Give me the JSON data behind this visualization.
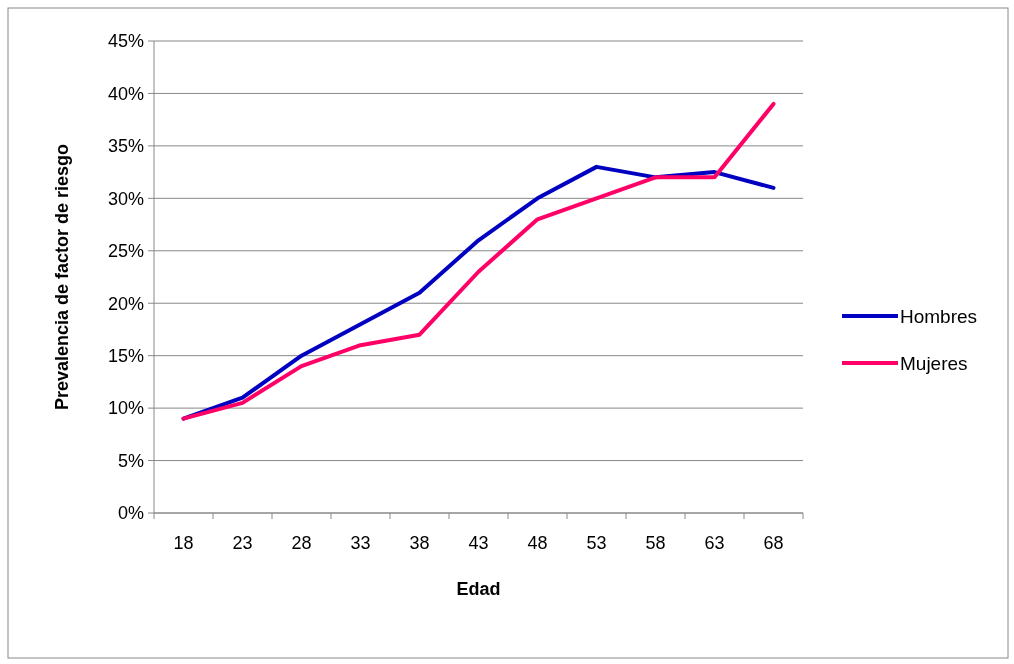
{
  "chart_data": {
    "type": "line",
    "xlabel": "Edad",
    "ylabel": "Prevalencia de factor de riesgo",
    "categories": [
      "18",
      "23",
      "28",
      "33",
      "38",
      "43",
      "48",
      "53",
      "58",
      "63",
      "68"
    ],
    "series": [
      {
        "name": "Hombres",
        "color": "#0000c0",
        "values": [
          9,
          11,
          15,
          18,
          21,
          26,
          30,
          33,
          32,
          32.5,
          31
        ]
      },
      {
        "name": "Mujeres",
        "color": "#ff0066",
        "values": [
          9,
          10.5,
          14,
          16,
          17,
          23,
          28,
          30,
          32,
          32,
          39
        ]
      }
    ],
    "ylim": [
      0,
      45
    ],
    "yticks": [
      {
        "value": 0,
        "label": "0%"
      },
      {
        "value": 5,
        "label": "5%"
      },
      {
        "value": 10,
        "label": "10%"
      },
      {
        "value": 15,
        "label": "15%"
      },
      {
        "value": 20,
        "label": "20%"
      },
      {
        "value": 25,
        "label": "25%"
      },
      {
        "value": 30,
        "label": "30%"
      },
      {
        "value": 35,
        "label": "35%"
      },
      {
        "value": 40,
        "label": "40%"
      },
      {
        "value": 45,
        "label": "45%"
      }
    ],
    "grid": "y",
    "legend": "right",
    "marker": "none",
    "line_style": "solid"
  }
}
